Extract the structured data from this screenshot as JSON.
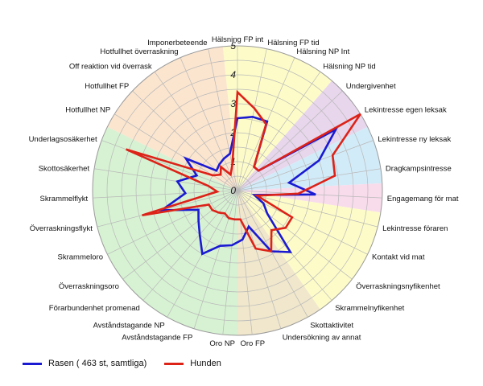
{
  "chart_data": {
    "type": "radar",
    "title": "",
    "range": [
      0,
      5
    ],
    "ticks": [
      "1",
      "2",
      "3",
      "4",
      "5"
    ],
    "grid": true,
    "legend_position": "bottom-left",
    "axes": [
      "Hälsning FP int",
      "Hälsning FP tid",
      "Hälsning NP Int",
      "Hälsning NP tid",
      "Undergivenhet",
      "Lekintresse egen leksak",
      "Lekintresse ny leksak",
      "Dragkampsintresse",
      "Engagemang för mat",
      "Lekintresse föraren",
      "Kontakt vid mat",
      "Överraskningsnyfikenhet",
      "Skrammelnyfikenhet",
      "Skottaktivitet",
      "Undersökning av annat",
      "Oro FP",
      "Oro NP",
      "Avståndstagande FP",
      "Avståndstagande NP",
      "Förarbundenhet promenad",
      "Överraskningsoro",
      "Skrammeloro",
      "Överraskningsflykt",
      "Skrammelflykt",
      "Skottosäkerhet",
      "Underlagsosäkerhet",
      "Hotfullhet NP",
      "Hotfullhet FP",
      "Off reaktion vid överrask",
      "Hotfullhet överraskning",
      "Imponerbeteende"
    ],
    "sectors": [
      {
        "from": 0,
        "to": 4,
        "color": "#fdfcc9"
      },
      {
        "from": 4,
        "to": 6,
        "color": "#e8d6ec"
      },
      {
        "from": 6,
        "to": 8,
        "color": "#d2ebf8"
      },
      {
        "from": 8,
        "to": 9,
        "color": "#f8dcec"
      },
      {
        "from": 9,
        "to": 13,
        "color": "#fdfcc9"
      },
      {
        "from": 13,
        "to": 16,
        "color": "#f0e7cc"
      },
      {
        "from": 16,
        "to": 26,
        "color": "#d7f2d3"
      },
      {
        "from": 26,
        "to": 31,
        "color": "#fbe5cf"
      }
    ],
    "series": [
      {
        "name": "Rasen ( 463 st, samtliga)",
        "color": "#1a1ad2",
        "values": [
          2.5,
          2.6,
          2.6,
          1.0,
          1.0,
          4.0,
          3.0,
          1.8,
          2.7,
          0.6,
          1.0,
          1.3,
          2.8,
          2.4,
          1.3,
          1.7,
          1.9,
          2.0,
          2.5,
          2.0,
          1.7,
          1.5,
          2.7,
          1.8,
          2.1,
          1.5,
          2.1,
          1.0,
          1.1,
          1.2,
          1.3
        ]
      },
      {
        "name": "Hunden",
        "color": "#dd2218",
        "values": [
          3.4,
          2.9,
          2.5,
          1.0,
          1.0,
          5.0,
          3.5,
          3.4,
          2.1,
          0.7,
          2.1,
          2.1,
          1.8,
          2.4,
          2.1,
          1.0,
          1.0,
          1.0,
          0.9,
          1.0,
          1.1,
          1.1,
          3.4,
          0.7,
          1.0,
          4.1,
          1.0,
          0.8,
          1.0,
          0.6,
          0.9
        ]
      }
    ]
  }
}
